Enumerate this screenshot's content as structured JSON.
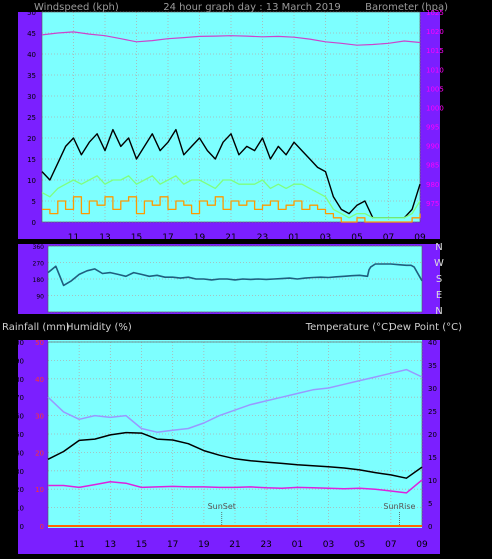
{
  "header": {
    "left": "Windspeed (kph)",
    "center": "24 hour graph day : 13 March 2019",
    "right": "Barometer (hpa)"
  },
  "middle": {
    "headers": {
      "rainfall": "Rainfall (mm)",
      "humidity": "Humidity (%)",
      "temperature": "Temperature (°C)",
      "dewpoint": "Dew Point (°C)"
    }
  },
  "colors": {
    "frame": "#7b1fff",
    "plot_bg": "#7dffff",
    "grid": "#b0b0b0",
    "black": "#000000",
    "gust": "#000000",
    "avg_wind": "#7fff7f",
    "wind_min": "#ff9900",
    "barometer": "#cc44cc",
    "direction": "#1f5f7f",
    "temp": "#000000",
    "humidity": "#9999ff",
    "dewpoint": "#dd22dd",
    "rain": "#ff6600",
    "left_axis": "#000000",
    "right_axis": "#ff00ff",
    "red_axis": "#ff3333"
  },
  "chart_data": [
    {
      "type": "line",
      "title": "24 hour graph day : 13 March 2019",
      "ylabel": "Windspeed (kph)",
      "y2label": "Barometer (hpa)",
      "x_ticks": [
        "11",
        "13",
        "15",
        "17",
        "19",
        "21",
        "23",
        "01",
        "03",
        "05",
        "07",
        "09"
      ],
      "x_hours": [
        11,
        13,
        15,
        17,
        19,
        21,
        23,
        25,
        27,
        29,
        31,
        33
      ],
      "x_range": [
        9,
        33
      ],
      "ylim": [
        0,
        50
      ],
      "y_ticks": [
        0,
        5,
        10,
        15,
        20,
        25,
        30,
        35,
        40,
        45,
        50
      ],
      "y2lim": [
        970,
        1025
      ],
      "y2_ticks": [
        975,
        980,
        985,
        990,
        995,
        1000,
        1005,
        1010,
        1015,
        1020,
        1025
      ],
      "series": [
        {
          "key": "gust",
          "axis": "y",
          "x": [
            9.0,
            9.5,
            10.0,
            10.5,
            11.0,
            11.5,
            12.0,
            12.5,
            13.0,
            13.5,
            14.0,
            14.5,
            15.0,
            15.5,
            16.0,
            16.5,
            17.0,
            17.5,
            18.0,
            18.5,
            19.0,
            19.5,
            20.0,
            20.5,
            21.0,
            21.5,
            22.0,
            22.5,
            23.0,
            23.5,
            24.0,
            24.5,
            25.0,
            25.5,
            26.0,
            26.5,
            27.0,
            27.5,
            28.0,
            28.5,
            29.0,
            29.5,
            30.0,
            30.5,
            31.0,
            31.5,
            32.0,
            32.5,
            33.0
          ],
          "values": [
            12,
            10,
            14,
            18,
            20,
            16,
            19,
            21,
            17,
            22,
            18,
            20,
            15,
            18,
            21,
            17,
            19,
            22,
            16,
            18,
            20,
            17,
            15,
            19,
            21,
            16,
            18,
            17,
            20,
            15,
            18,
            16,
            19,
            17,
            15,
            13,
            12,
            6,
            3,
            2,
            4,
            5,
            1,
            1,
            1,
            1,
            1,
            3,
            9
          ]
        },
        {
          "key": "avg_wind",
          "axis": "y",
          "x": [
            9.0,
            9.5,
            10.0,
            10.5,
            11.0,
            11.5,
            12.0,
            12.5,
            13.0,
            13.5,
            14.0,
            14.5,
            15.0,
            15.5,
            16.0,
            16.5,
            17.0,
            17.5,
            18.0,
            18.5,
            19.0,
            19.5,
            20.0,
            20.5,
            21.0,
            21.5,
            22.0,
            22.5,
            23.0,
            23.5,
            24.0,
            24.5,
            25.0,
            25.5,
            26.0,
            26.5,
            27.0,
            27.5,
            28.0,
            28.5,
            29.0,
            29.5,
            30.0,
            30.5,
            31.0,
            31.5,
            32.0,
            32.5,
            33.0
          ],
          "values": [
            7,
            6,
            8,
            9,
            10,
            9,
            10,
            11,
            9,
            10,
            10,
            11,
            9,
            10,
            11,
            9,
            10,
            11,
            9,
            10,
            10,
            9,
            8,
            10,
            10,
            9,
            9,
            9,
            10,
            8,
            9,
            8,
            9,
            9,
            8,
            7,
            6,
            3,
            2,
            1,
            2,
            2,
            1,
            1,
            1,
            1,
            1,
            2,
            5
          ]
        },
        {
          "key": "wind_min",
          "axis": "y",
          "x": [
            9.0,
            9.5,
            10.0,
            10.5,
            11.0,
            11.5,
            12.0,
            12.5,
            13.0,
            13.5,
            14.0,
            14.5,
            15.0,
            15.5,
            16.0,
            16.5,
            17.0,
            17.5,
            18.0,
            18.5,
            19.0,
            19.5,
            20.0,
            20.5,
            21.0,
            21.5,
            22.0,
            22.5,
            23.0,
            23.5,
            24.0,
            24.5,
            25.0,
            25.5,
            26.0,
            26.5,
            27.0,
            27.5,
            28.0,
            28.5,
            29.0,
            29.5,
            30.0,
            30.5,
            31.0,
            31.5,
            32.0,
            32.5,
            33.0
          ],
          "values": [
            3,
            2,
            5,
            3,
            6,
            2,
            5,
            4,
            6,
            3,
            5,
            6,
            2,
            5,
            4,
            6,
            3,
            5,
            4,
            2,
            5,
            4,
            6,
            3,
            5,
            4,
            5,
            3,
            4,
            5,
            3,
            4,
            5,
            3,
            4,
            3,
            2,
            1,
            0,
            0,
            1,
            0,
            0,
            0,
            0,
            0,
            0,
            1,
            2
          ]
        },
        {
          "key": "barometer",
          "axis": "y2",
          "x": [
            9,
            10,
            11,
            12,
            13,
            14,
            15,
            16,
            17,
            18,
            19,
            20,
            21,
            22,
            23,
            24,
            25,
            26,
            27,
            28,
            29,
            30,
            31,
            32,
            33
          ],
          "values": [
            1019.0,
            1019.5,
            1019.8,
            1019.2,
            1018.8,
            1018.0,
            1017.2,
            1017.5,
            1018.0,
            1018.3,
            1018.6,
            1018.7,
            1018.8,
            1018.7,
            1018.5,
            1018.6,
            1018.4,
            1017.9,
            1017.2,
            1016.8,
            1016.3,
            1016.5,
            1016.8,
            1017.4,
            1017.0
          ]
        }
      ]
    },
    {
      "type": "line",
      "ylabel": "Wind direction",
      "x_range": [
        9,
        33
      ],
      "ylim": [
        0,
        360
      ],
      "y_ticks": [
        0,
        90,
        180,
        270,
        360
      ],
      "y_tick_labels": [
        "",
        "90",
        "180",
        "270",
        "360"
      ],
      "right_labels": [
        "N",
        "W",
        "S",
        "E",
        "N"
      ],
      "series": [
        {
          "key": "direction",
          "x": [
            9.0,
            9.5,
            10.0,
            10.5,
            11.0,
            11.5,
            12.0,
            12.5,
            13.0,
            13.5,
            14.0,
            14.5,
            15.0,
            15.5,
            16.0,
            16.5,
            17.0,
            17.5,
            18.0,
            18.5,
            19.0,
            19.5,
            20.0,
            20.5,
            21.0,
            21.5,
            22.0,
            22.5,
            23.0,
            23.5,
            24.0,
            24.5,
            25.0,
            25.5,
            26.0,
            26.5,
            27.0,
            27.5,
            28.0,
            28.5,
            29.0,
            29.5,
            29.6,
            29.7,
            30.0,
            30.5,
            31.0,
            31.5,
            32.0,
            32.3,
            32.5,
            33.0
          ],
          "values": [
            215,
            250,
            145,
            170,
            205,
            225,
            235,
            210,
            215,
            205,
            195,
            215,
            205,
            195,
            200,
            190,
            190,
            185,
            190,
            180,
            180,
            175,
            180,
            180,
            175,
            180,
            178,
            180,
            178,
            180,
            182,
            185,
            180,
            185,
            188,
            190,
            188,
            192,
            195,
            198,
            200,
            195,
            230,
            245,
            262,
            262,
            262,
            258,
            255,
            255,
            245,
            170
          ]
        }
      ]
    },
    {
      "type": "line",
      "x_ticks": [
        "11",
        "13",
        "15",
        "17",
        "19",
        "21",
        "23",
        "01",
        "03",
        "05",
        "07",
        "09"
      ],
      "x_hours": [
        11,
        13,
        15,
        17,
        19,
        21,
        23,
        25,
        27,
        29,
        31,
        33
      ],
      "x_range": [
        9,
        33
      ],
      "ylim": [
        0,
        100
      ],
      "y_ticks": [
        0,
        10,
        20,
        30,
        40,
        50,
        60,
        70,
        80,
        90,
        100
      ],
      "rain_ticks": [
        0,
        10,
        20,
        30,
        40,
        50
      ],
      "rain_tick_labels": [
        "0",
        "10",
        "20",
        "30",
        "40",
        "50"
      ],
      "y2lim": [
        0,
        40
      ],
      "y2_ticks": [
        0,
        5,
        10,
        15,
        20,
        25,
        30,
        35,
        40
      ],
      "annotations": [
        {
          "label": "SunSet",
          "x": 20.15
        },
        {
          "label": "SunRise",
          "x": 31.55
        }
      ],
      "series": [
        {
          "key": "temp",
          "axis": "y2",
          "x": [
            9,
            10,
            11,
            12,
            13,
            14,
            15,
            16,
            17,
            18,
            19,
            20,
            21,
            22,
            23,
            24,
            25,
            26,
            27,
            28,
            29,
            30,
            31,
            32,
            33
          ],
          "values": [
            14.5,
            16.2,
            18.6,
            18.9,
            19.8,
            20.3,
            20.2,
            18.9,
            18.7,
            17.9,
            16.4,
            15.4,
            14.6,
            14.2,
            13.9,
            13.6,
            13.3,
            13.1,
            12.9,
            12.6,
            12.2,
            11.6,
            11.1,
            10.4,
            12.8
          ]
        },
        {
          "key": "humidity",
          "axis": "y",
          "x": [
            9,
            10,
            11,
            12,
            13,
            14,
            15,
            16,
            17,
            18,
            19,
            20,
            21,
            22,
            23,
            24,
            25,
            26,
            27,
            28,
            29,
            30,
            31,
            32,
            33
          ],
          "values": [
            70,
            62,
            58,
            60,
            59,
            60,
            53,
            51,
            52,
            53,
            56,
            60,
            63,
            66,
            68,
            70,
            72,
            74,
            75,
            77,
            79,
            81,
            83,
            85,
            81
          ]
        },
        {
          "key": "dewpoint",
          "axis": "y2",
          "x": [
            9,
            10,
            11,
            12,
            13,
            14,
            15,
            16,
            17,
            18,
            19,
            20,
            21,
            22,
            23,
            24,
            25,
            26,
            27,
            28,
            29,
            30,
            31,
            32,
            33
          ],
          "values": [
            8.8,
            8.8,
            8.4,
            9.0,
            9.6,
            9.3,
            8.4,
            8.5,
            8.6,
            8.5,
            8.5,
            8.4,
            8.4,
            8.5,
            8.3,
            8.2,
            8.4,
            8.3,
            8.2,
            8.1,
            8.2,
            8.0,
            7.6,
            7.2,
            10.0
          ]
        },
        {
          "key": "rain",
          "axis": "y",
          "x": [
            9,
            33
          ],
          "values": [
            0,
            0
          ]
        }
      ]
    }
  ]
}
